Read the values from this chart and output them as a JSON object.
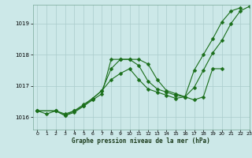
{
  "xlabel": "Graphe pression niveau de la mer (hPa)",
  "xlim": [
    -0.5,
    23
  ],
  "ylim": [
    1015.6,
    1019.6
  ],
  "yticks": [
    1016,
    1017,
    1018,
    1019
  ],
  "xticks": [
    0,
    1,
    2,
    3,
    4,
    5,
    6,
    7,
    8,
    9,
    10,
    11,
    12,
    13,
    14,
    15,
    16,
    17,
    18,
    19,
    20,
    21,
    22,
    23
  ],
  "bg_color": "#cce8e8",
  "grid_color": "#aacccc",
  "line_color": "#1a6e1a",
  "line1_x": [
    0,
    1,
    2,
    3,
    4,
    5,
    6,
    7,
    8,
    9,
    10,
    11,
    12,
    13,
    14,
    15,
    16,
    17,
    18,
    19,
    20,
    21,
    22,
    23
  ],
  "line1_y": [
    1016.2,
    1016.1,
    1016.2,
    1016.05,
    1016.15,
    1016.35,
    1016.55,
    1016.75,
    1017.85,
    1017.85,
    1017.85,
    1017.65,
    1017.15,
    1016.9,
    1016.8,
    1016.7,
    1016.65,
    1017.5,
    1018.0,
    1018.5,
    1019.05,
    1019.4,
    1019.5,
    null
  ],
  "line2_x": [
    0,
    2,
    3,
    4,
    5,
    6,
    7,
    8,
    9,
    10,
    11,
    12,
    13,
    14,
    15,
    16,
    17,
    18,
    19,
    20
  ],
  "line2_y": [
    1016.2,
    1016.2,
    1016.05,
    1016.2,
    1016.4,
    1016.6,
    1016.85,
    1017.55,
    1017.85,
    1017.85,
    1017.85,
    1017.7,
    1017.2,
    1016.85,
    1016.75,
    1016.65,
    1016.55,
    1016.65,
    1017.55,
    1017.55
  ],
  "line3_x": [
    0,
    2,
    3,
    4,
    5,
    6,
    7,
    8,
    9,
    10,
    11,
    12,
    13,
    14,
    15,
    16,
    17,
    18,
    19,
    20,
    21,
    22,
    23
  ],
  "line3_y": [
    1016.2,
    1016.2,
    1016.1,
    1016.2,
    1016.35,
    1016.6,
    1016.85,
    1017.2,
    1017.4,
    1017.55,
    1017.2,
    1016.9,
    1016.8,
    1016.7,
    1016.6,
    1016.65,
    1016.95,
    1017.5,
    1018.05,
    1018.45,
    1019.0,
    1019.4,
    1019.55
  ]
}
